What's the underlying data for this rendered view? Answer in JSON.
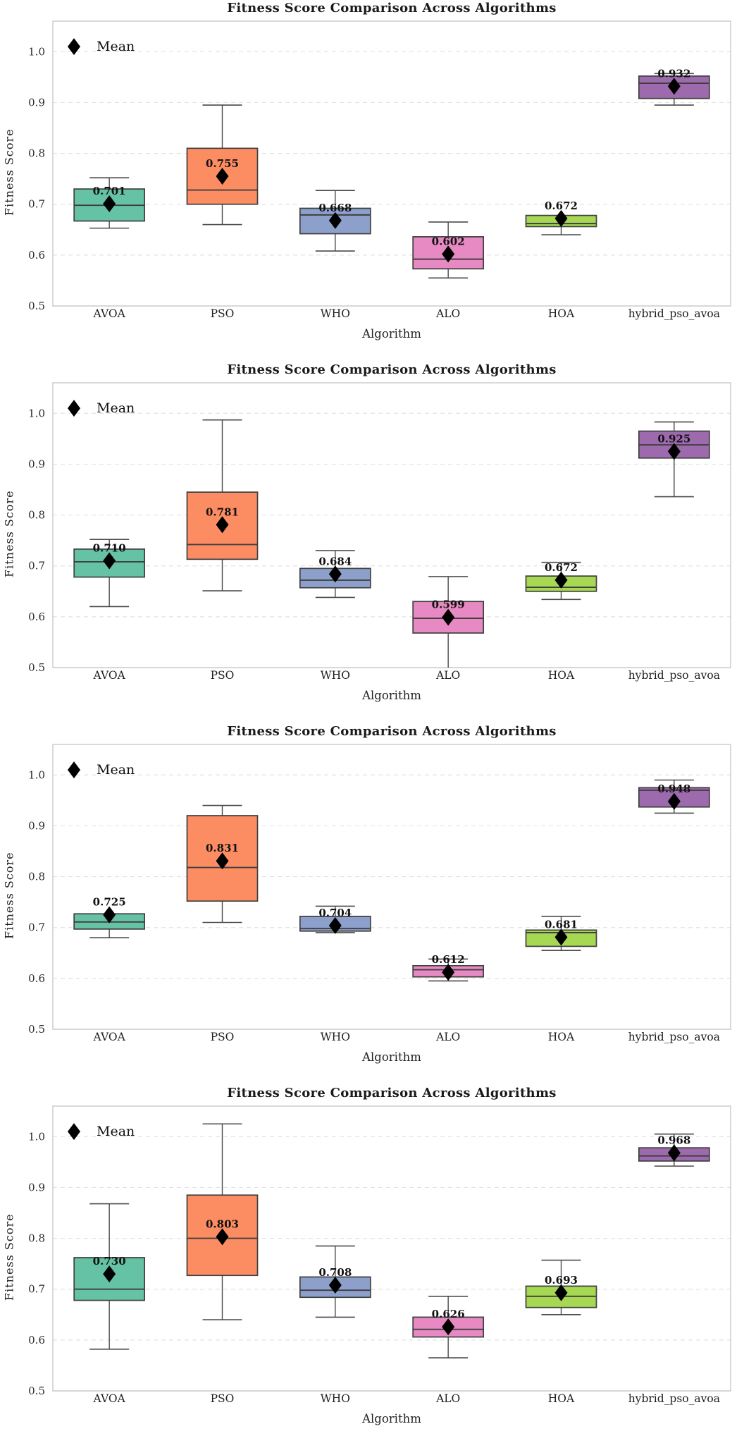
{
  "chart_data": [
    {
      "type": "boxplot",
      "title": "Fitness Score Comparison Across Algorithms",
      "xlabel": "Algorithm",
      "ylabel": "Fitness Score",
      "legend": {
        "label": "Mean",
        "marker": "black-diamond",
        "position": "upper left"
      },
      "ylim": [
        0.5,
        1.06
      ],
      "yticks": [
        0.5,
        0.6,
        0.7,
        0.8,
        0.9,
        1.0
      ],
      "grid": "horizontal-dashed",
      "categories": [
        "AVOA",
        "PSO",
        "WHO",
        "ALO",
        "HOA",
        "hybrid_pso_avoa"
      ],
      "colors": [
        "#66c2a5",
        "#fc8d62",
        "#8da0cb",
        "#e78ac3",
        "#a6d854",
        "#9e6aae"
      ],
      "boxes": [
        {
          "algorithm": "AVOA",
          "whisker_low": 0.653,
          "q1": 0.667,
          "median": 0.698,
          "q3": 0.73,
          "whisker_high": 0.752,
          "mean": 0.701,
          "mean_label": "0.701"
        },
        {
          "algorithm": "PSO",
          "whisker_low": 0.66,
          "q1": 0.7,
          "median": 0.728,
          "q3": 0.81,
          "whisker_high": 0.895,
          "mean": 0.755,
          "mean_label": "0.755"
        },
        {
          "algorithm": "WHO",
          "whisker_low": 0.608,
          "q1": 0.642,
          "median": 0.679,
          "q3": 0.692,
          "whisker_high": 0.727,
          "mean": 0.668,
          "mean_label": "0.668"
        },
        {
          "algorithm": "ALO",
          "whisker_low": 0.555,
          "q1": 0.573,
          "median": 0.592,
          "q3": 0.636,
          "whisker_high": 0.665,
          "mean": 0.602,
          "mean_label": "0.602"
        },
        {
          "algorithm": "HOA",
          "whisker_low": 0.64,
          "q1": 0.656,
          "median": 0.662,
          "q3": 0.678,
          "whisker_high": 0.678,
          "mean": 0.672,
          "mean_label": "0.672"
        },
        {
          "algorithm": "hybrid_pso_avoa",
          "whisker_low": 0.895,
          "q1": 0.908,
          "median": 0.938,
          "q3": 0.952,
          "whisker_high": 0.957,
          "mean": 0.932,
          "mean_label": "0.932"
        }
      ]
    },
    {
      "type": "boxplot",
      "title": "Fitness Score Comparison Across Algorithms",
      "xlabel": "Algorithm",
      "ylabel": "Fitness Score",
      "legend": {
        "label": "Mean",
        "marker": "black-diamond",
        "position": "upper left"
      },
      "ylim": [
        0.5,
        1.06
      ],
      "yticks": [
        0.5,
        0.6,
        0.7,
        0.8,
        0.9,
        1.0
      ],
      "grid": "horizontal-dashed",
      "categories": [
        "AVOA",
        "PSO",
        "WHO",
        "ALO",
        "HOA",
        "hybrid_pso_avoa"
      ],
      "colors": [
        "#66c2a5",
        "#fc8d62",
        "#8da0cb",
        "#e78ac3",
        "#a6d854",
        "#9e6aae"
      ],
      "boxes": [
        {
          "algorithm": "AVOA",
          "whisker_low": 0.62,
          "q1": 0.678,
          "median": 0.708,
          "q3": 0.733,
          "whisker_high": 0.752,
          "mean": 0.71,
          "mean_label": "0.710"
        },
        {
          "algorithm": "PSO",
          "whisker_low": 0.651,
          "q1": 0.713,
          "median": 0.742,
          "q3": 0.845,
          "whisker_high": 0.987,
          "mean": 0.781,
          "mean_label": "0.781"
        },
        {
          "algorithm": "WHO",
          "whisker_low": 0.638,
          "q1": 0.657,
          "median": 0.672,
          "q3": 0.695,
          "whisker_high": 0.73,
          "mean": 0.684,
          "mean_label": "0.684"
        },
        {
          "algorithm": "ALO",
          "whisker_low": 0.5,
          "q1": 0.568,
          "median": 0.597,
          "q3": 0.63,
          "whisker_high": 0.679,
          "mean": 0.599,
          "mean_label": "0.599"
        },
        {
          "algorithm": "HOA",
          "whisker_low": 0.634,
          "q1": 0.65,
          "median": 0.658,
          "q3": 0.68,
          "whisker_high": 0.707,
          "mean": 0.672,
          "mean_label": "0.672"
        },
        {
          "algorithm": "hybrid_pso_avoa",
          "whisker_low": 0.836,
          "q1": 0.912,
          "median": 0.938,
          "q3": 0.965,
          "whisker_high": 0.983,
          "mean": 0.925,
          "mean_label": "0.925"
        }
      ]
    },
    {
      "type": "boxplot",
      "title": "Fitness Score Comparison Across Algorithms",
      "xlabel": "Algorithm",
      "ylabel": "Fitness Score",
      "legend": {
        "label": "Mean",
        "marker": "black-diamond",
        "position": "upper left"
      },
      "ylim": [
        0.5,
        1.06
      ],
      "yticks": [
        0.5,
        0.6,
        0.7,
        0.8,
        0.9,
        1.0
      ],
      "grid": "horizontal-dashed",
      "categories": [
        "AVOA",
        "PSO",
        "WHO",
        "ALO",
        "HOA",
        "hybrid_pso_avoa"
      ],
      "colors": [
        "#66c2a5",
        "#fc8d62",
        "#8da0cb",
        "#e78ac3",
        "#a6d854",
        "#9e6aae"
      ],
      "boxes": [
        {
          "algorithm": "AVOA",
          "whisker_low": 0.68,
          "q1": 0.697,
          "median": 0.711,
          "q3": 0.727,
          "whisker_high": 0.727,
          "mean": 0.725,
          "mean_label": "0.725"
        },
        {
          "algorithm": "PSO",
          "whisker_low": 0.71,
          "q1": 0.752,
          "median": 0.818,
          "q3": 0.92,
          "whisker_high": 0.94,
          "mean": 0.831,
          "mean_label": "0.831"
        },
        {
          "algorithm": "WHO",
          "whisker_low": 0.69,
          "q1": 0.693,
          "median": 0.698,
          "q3": 0.722,
          "whisker_high": 0.742,
          "mean": 0.704,
          "mean_label": "0.704"
        },
        {
          "algorithm": "ALO",
          "whisker_low": 0.595,
          "q1": 0.603,
          "median": 0.617,
          "q3": 0.625,
          "whisker_high": 0.638,
          "mean": 0.612,
          "mean_label": "0.612"
        },
        {
          "algorithm": "HOA",
          "whisker_low": 0.655,
          "q1": 0.663,
          "median": 0.69,
          "q3": 0.695,
          "whisker_high": 0.722,
          "mean": 0.681,
          "mean_label": "0.681"
        },
        {
          "algorithm": "hybrid_pso_avoa",
          "whisker_low": 0.925,
          "q1": 0.937,
          "median": 0.97,
          "q3": 0.975,
          "whisker_high": 0.99,
          "mean": 0.948,
          "mean_label": "0.948"
        }
      ]
    },
    {
      "type": "boxplot",
      "title": "Fitness Score Comparison Across Algorithms",
      "xlabel": "Algorithm",
      "ylabel": "Fitness Score",
      "legend": {
        "label": "Mean",
        "marker": "black-diamond",
        "position": "upper left"
      },
      "ylim": [
        0.5,
        1.06
      ],
      "yticks": [
        0.5,
        0.6,
        0.7,
        0.8,
        0.9,
        1.0
      ],
      "grid": "horizontal-dashed",
      "categories": [
        "AVOA",
        "PSO",
        "WHO",
        "ALO",
        "HOA",
        "hybrid_pso_avoa"
      ],
      "colors": [
        "#66c2a5",
        "#fc8d62",
        "#8da0cb",
        "#e78ac3",
        "#a6d854",
        "#9e6aae"
      ],
      "boxes": [
        {
          "algorithm": "AVOA",
          "whisker_low": 0.582,
          "q1": 0.678,
          "median": 0.7,
          "q3": 0.762,
          "whisker_high": 0.868,
          "mean": 0.73,
          "mean_label": "0.730"
        },
        {
          "algorithm": "PSO",
          "whisker_low": 0.64,
          "q1": 0.727,
          "median": 0.8,
          "q3": 0.885,
          "whisker_high": 1.025,
          "mean": 0.803,
          "mean_label": "0.803"
        },
        {
          "algorithm": "WHO",
          "whisker_low": 0.645,
          "q1": 0.684,
          "median": 0.698,
          "q3": 0.724,
          "whisker_high": 0.785,
          "mean": 0.708,
          "mean_label": "0.708"
        },
        {
          "algorithm": "ALO",
          "whisker_low": 0.565,
          "q1": 0.606,
          "median": 0.621,
          "q3": 0.645,
          "whisker_high": 0.686,
          "mean": 0.626,
          "mean_label": "0.626"
        },
        {
          "algorithm": "HOA",
          "whisker_low": 0.65,
          "q1": 0.664,
          "median": 0.686,
          "q3": 0.706,
          "whisker_high": 0.757,
          "mean": 0.693,
          "mean_label": "0.693"
        },
        {
          "algorithm": "hybrid_pso_avoa",
          "whisker_low": 0.942,
          "q1": 0.952,
          "median": 0.962,
          "q3": 0.978,
          "whisker_high": 1.005,
          "mean": 0.968,
          "mean_label": "0.968"
        }
      ]
    }
  ],
  "style": {
    "box_edge_color": "#3f3f3f",
    "median_color": "#3f3f3f",
    "whisker_color": "#4a4a4a",
    "mean_marker_color": "#000000",
    "grid_color": "#e2e2e2",
    "spine_color": "#c9c9c9",
    "text_color": "#222222"
  }
}
